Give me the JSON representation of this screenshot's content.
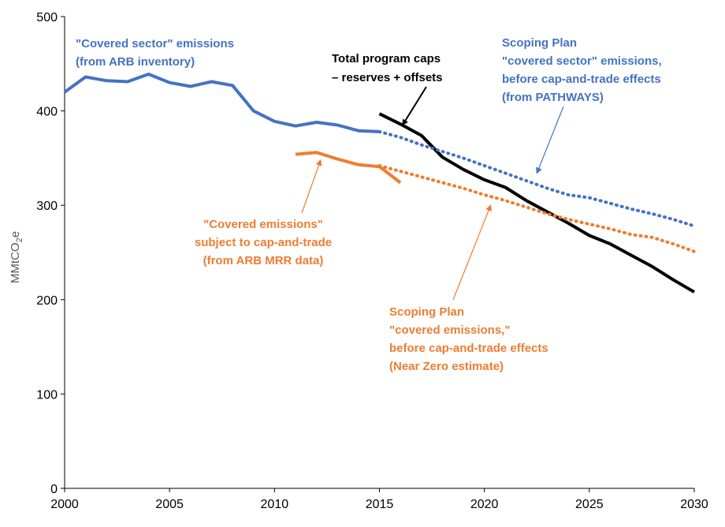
{
  "chart_data": {
    "type": "line",
    "ylabel": {
      "main": "MMtCO",
      "sub": "2",
      "tail": "e"
    },
    "xlim": [
      2000,
      2030
    ],
    "ylim": [
      0,
      500
    ],
    "x_ticks": [
      "2000",
      "2005",
      "2010",
      "2015",
      "2020",
      "2025",
      "2030"
    ],
    "y_ticks": [
      "0",
      "100",
      "200",
      "300",
      "400",
      "500"
    ],
    "grid": false,
    "colors": {
      "blue": "#4472C4",
      "orange": "#ED7D31",
      "black": "#000000"
    },
    "series": [
      {
        "style": "solid",
        "color": "#4472C4",
        "x": [
          2000,
          2001,
          2002,
          2003,
          2004,
          2005,
          2006,
          2007,
          2008,
          2009,
          2010,
          2011,
          2012,
          2013,
          2014,
          2015
        ],
        "y": [
          420,
          436,
          432,
          431,
          439,
          430,
          426,
          431,
          427,
          400,
          389,
          384,
          388,
          385,
          379,
          378
        ]
      },
      {
        "style": "solid",
        "color": "#ED7D31",
        "x": [
          2011,
          2012,
          2013,
          2014,
          2015,
          2016
        ],
        "y": [
          354,
          356,
          349,
          343,
          341,
          324
        ]
      },
      {
        "style": "solid",
        "color": "#000000",
        "x": [
          2015,
          2016,
          2017,
          2018,
          2019,
          2020,
          2021,
          2022,
          2023,
          2024,
          2025,
          2026,
          2027,
          2028,
          2029,
          2030
        ],
        "y": [
          397,
          386,
          374,
          351,
          338,
          327,
          319,
          305,
          293,
          281,
          268,
          259,
          247,
          235,
          221,
          208
        ]
      },
      {
        "style": "dotted",
        "color": "#4472C4",
        "x": [
          2015,
          2016,
          2017,
          2018,
          2019,
          2020,
          2021,
          2022,
          2023,
          2024,
          2025,
          2026,
          2027,
          2028,
          2029,
          2030
        ],
        "y": [
          378,
          372,
          364,
          357,
          350,
          342,
          334,
          326,
          318,
          311,
          308,
          302,
          296,
          291,
          285,
          278
        ]
      },
      {
        "style": "dotted",
        "color": "#ED7D31",
        "x": [
          2015,
          2016,
          2017,
          2018,
          2019,
          2020,
          2021,
          2022,
          2023,
          2024,
          2025,
          2026,
          2027,
          2028,
          2029,
          2030
        ],
        "y": [
          342,
          336,
          330,
          324,
          318,
          311,
          305,
          298,
          291,
          285,
          280,
          275,
          269,
          266,
          259,
          251
        ]
      }
    ],
    "annotations": [
      {
        "id": "covered-sector",
        "color": "#4472C4",
        "anchor": "start",
        "lines": [
          "\"Covered sector\" emissions",
          "(from ARB inventory)"
        ]
      },
      {
        "id": "total-caps",
        "color": "#000000",
        "anchor": "start",
        "lines": [
          "Total program caps",
          "– reserves + offsets"
        ],
        "arrow_to": {
          "x": 2016.1,
          "y": 385
        }
      },
      {
        "id": "scoping-sector",
        "color": "#4472C4",
        "anchor": "start",
        "lines": [
          "Scoping Plan",
          "\"covered sector\" emissions,",
          "before cap-and-trade effects",
          "(from PATHWAYS)"
        ],
        "arrow_to": {
          "x": 2022.5,
          "y": 334
        }
      },
      {
        "id": "covered-emissions",
        "color": "#ED7D31",
        "anchor": "middle",
        "lines": [
          "\"Covered emissions\"",
          "subject to cap-and-trade",
          "(from ARB MRR data)"
        ],
        "arrow_to": {
          "x": 2012.2,
          "y": 348
        }
      },
      {
        "id": "scoping-covered",
        "color": "#ED7D31",
        "anchor": "start",
        "lines": [
          "Scoping Plan",
          "\"covered emissions,\"",
          "before cap-and-trade effects",
          "(Near Zero estimate)"
        ],
        "arrow_to": {
          "x": 2020.3,
          "y": 300
        }
      }
    ]
  }
}
